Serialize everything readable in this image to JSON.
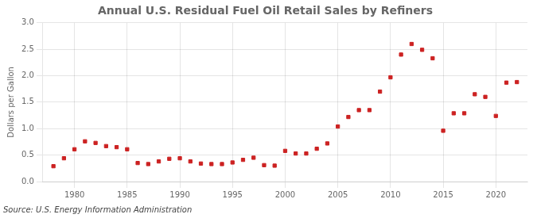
{
  "chart_data": {
    "type": "scatter",
    "title": "Annual U.S. Residual Fuel Oil Retail Sales by Refiners",
    "ylabel": "Dollars per Gallon",
    "annotations": [
      "Source: U.S. Energy Information Administration"
    ],
    "x": [
      1978,
      1979,
      1980,
      1981,
      1982,
      1983,
      1984,
      1985,
      1986,
      1987,
      1988,
      1989,
      1990,
      1991,
      1992,
      1993,
      1994,
      1995,
      1996,
      1997,
      1998,
      1999,
      2000,
      2001,
      2002,
      2003,
      2004,
      2005,
      2006,
      2007,
      2008,
      2009,
      2010,
      2011,
      2012,
      2013,
      2014,
      2015,
      2016,
      2017,
      2018,
      2019,
      2020,
      2021,
      2022
    ],
    "values": [
      0.29,
      0.44,
      0.61,
      0.76,
      0.73,
      0.67,
      0.65,
      0.61,
      0.35,
      0.33,
      0.38,
      0.43,
      0.44,
      0.38,
      0.34,
      0.33,
      0.33,
      0.36,
      0.41,
      0.45,
      0.31,
      0.3,
      0.58,
      0.53,
      0.53,
      0.62,
      0.72,
      1.04,
      1.22,
      1.35,
      1.35,
      1.7,
      1.97,
      2.4,
      2.6,
      2.49,
      2.33,
      0.96,
      1.29,
      1.29,
      1.65,
      1.6,
      1.24,
      1.87,
      1.88
    ],
    "color": "#cc2222",
    "marker": "square",
    "xlim": [
      1977,
      2023
    ],
    "xticks": [
      1980,
      1985,
      1990,
      1995,
      2000,
      2005,
      2010,
      2015,
      2020
    ],
    "ylim": [
      0.0,
      3.0
    ],
    "yticks": [
      {
        "value": 0.0,
        "label": "0.0"
      },
      0.5,
      {
        "value": 1.0,
        "label": "1.0"
      },
      1.5,
      {
        "value": 2.0,
        "label": "2.0"
      },
      2.5,
      {
        "value": 3.0,
        "label": "3.0"
      }
    ],
    "grid": true
  }
}
